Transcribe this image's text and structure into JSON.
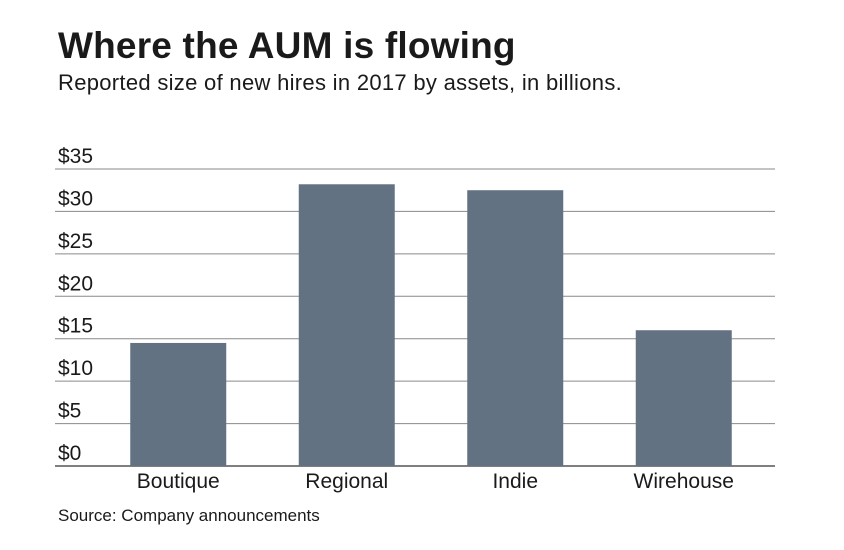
{
  "title": "Where the AUM is flowing",
  "subtitle": "Reported size of new hires in 2017 by assets, in billions.",
  "source": "Source: Company announcements",
  "colors": {
    "bar": "#637283",
    "gridline": "#8a8a8a",
    "axis": "#555555"
  },
  "chart_data": {
    "type": "bar",
    "title": "Where the AUM is flowing",
    "subtitle": "Reported size of new hires in 2017 by assets, in billions.",
    "categories": [
      "Boutique",
      "Regional",
      "Indie",
      "Wirehouse"
    ],
    "values": [
      14.5,
      33.2,
      32.5,
      16.0
    ],
    "ylim": [
      0,
      35
    ],
    "yticks": [
      0,
      5,
      10,
      15,
      20,
      25,
      30,
      35
    ],
    "ytick_labels": [
      "$0",
      "$5",
      "$10",
      "$15",
      "$20",
      "$25",
      "$30",
      "$35"
    ],
    "xlabel": "",
    "ylabel": "",
    "grid": true,
    "legend": "none"
  }
}
